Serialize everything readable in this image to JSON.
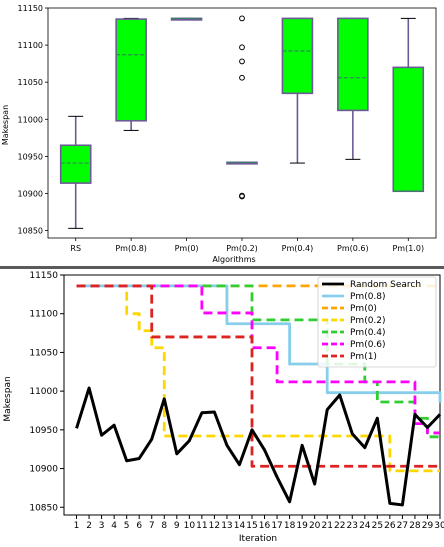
{
  "charts": {
    "boxplot": {
      "type": "box",
      "xlabel": "Algorithms",
      "ylabel": "Makespan",
      "ylim": [
        10840,
        11150
      ],
      "yticks": [
        10850,
        10900,
        10950,
        11000,
        11050,
        11100,
        11150
      ],
      "box_color": "#00ff00",
      "box_edge": "#6b5b95",
      "median_color": "#2e8b57",
      "boxes": [
        {
          "label": "RS",
          "whislo": 10853,
          "q1": 10914,
          "med": 10941,
          "q3": 10965,
          "whishi": 11004,
          "fliers": []
        },
        {
          "label": "Pm(0.8)",
          "whislo": 10985,
          "q1": 10998,
          "med": 11087,
          "q3": 11135,
          "whishi": 11136,
          "fliers": []
        },
        {
          "label": "Pm(0)",
          "whislo": 11136,
          "q1": 11136,
          "med": 11136,
          "q3": 11136,
          "whishi": 11136,
          "fliers": []
        },
        {
          "label": "Pm(0.2)",
          "whislo": 10942,
          "q1": 10942,
          "med": 10942,
          "q3": 10942,
          "whishi": 10942,
          "fliers": [
            11136,
            11097,
            11078,
            11056,
            10897,
            10896
          ]
        },
        {
          "label": "Pm(0.4)",
          "whislo": 10941,
          "q1": 11035,
          "med": 11092,
          "q3": 11136,
          "whishi": 11136,
          "fliers": []
        },
        {
          "label": "Pm(0.6)",
          "whislo": 10946,
          "q1": 11012,
          "med": 11056,
          "q3": 11136,
          "whishi": 11136,
          "fliers": []
        },
        {
          "label": "Pm(1.0)",
          "whislo": 10903,
          "q1": 10903,
          "med": 10903,
          "q3": 11070,
          "whishi": 11136,
          "fliers": []
        }
      ]
    },
    "convergence": {
      "type": "line",
      "xlabel": "Iteration",
      "ylabel": "Makespan",
      "ylim": [
        10840,
        11150
      ],
      "yticks": [
        10850,
        10900,
        10950,
        11000,
        11050,
        11100,
        11150
      ],
      "x": [
        1,
        2,
        3,
        4,
        5,
        6,
        7,
        8,
        9,
        10,
        11,
        12,
        13,
        14,
        15,
        16,
        17,
        18,
        19,
        20,
        21,
        22,
        23,
        24,
        25,
        26,
        27,
        28,
        29,
        30
      ],
      "series": [
        {
          "name": "Random Search",
          "color": "#000000",
          "dash": "solid",
          "values": [
            10952,
            11004,
            10943,
            10956,
            10910,
            10913,
            10938,
            10990,
            10919,
            10936,
            10972,
            10973,
            10930,
            10905,
            10950,
            10924,
            10889,
            10857,
            10930,
            10880,
            10976,
            10995,
            10945,
            10927,
            10965,
            10855,
            10853,
            10970,
            10953,
            10970
          ]
        },
        {
          "name": "Pm(0.8)",
          "color": "#87ceeb",
          "dash": "solid",
          "values": [
            11136,
            11136,
            11136,
            11136,
            11136,
            11136,
            11136,
            11136,
            11136,
            11136,
            11136,
            11136,
            11087,
            11087,
            11087,
            11087,
            11087,
            11035,
            11035,
            11035,
            10998,
            10998,
            10998,
            10998,
            10998,
            10998,
            10998,
            10998,
            10998,
            10985
          ]
        },
        {
          "name": "Pm(0)",
          "color": "#ffa500",
          "dash": "dashed",
          "values": [
            11136,
            11136,
            11136,
            11136,
            11136,
            11136,
            11136,
            11136,
            11136,
            11136,
            11136,
            11136,
            11136,
            11136,
            11136,
            11136,
            11136,
            11136,
            11136,
            11136,
            11136,
            11136,
            11136,
            11136,
            11136,
            11136,
            11136,
            11136,
            11136,
            11136
          ]
        },
        {
          "name": "Pm(0.2)",
          "color": "#ffd700",
          "dash": "dashed",
          "values": [
            11136,
            11136,
            11136,
            11136,
            11100,
            11078,
            11056,
            10942,
            10942,
            10942,
            10942,
            10942,
            10942,
            10942,
            10942,
            10942,
            10942,
            10942,
            10942,
            10942,
            10942,
            10942,
            10942,
            10942,
            10942,
            10897,
            10897,
            10897,
            10897,
            10897
          ]
        },
        {
          "name": "Pm(0.4)",
          "color": "#32cd32",
          "dash": "dashed",
          "values": [
            11136,
            11136,
            11136,
            11136,
            11136,
            11136,
            11136,
            11136,
            11136,
            11136,
            11136,
            11136,
            11136,
            11136,
            11092,
            11092,
            11092,
            11092,
            11092,
            11092,
            11035,
            11035,
            11035,
            11012,
            10986,
            10986,
            10986,
            10965,
            10941,
            10941
          ]
        },
        {
          "name": "Pm(0.6)",
          "color": "#ff00ff",
          "dash": "dashed",
          "values": [
            11136,
            11136,
            11136,
            11136,
            11136,
            11136,
            11136,
            11136,
            11136,
            11136,
            11101,
            11101,
            11101,
            11101,
            11056,
            11056,
            11012,
            11012,
            11012,
            11012,
            11012,
            11012,
            11012,
            11012,
            11012,
            11012,
            11012,
            10958,
            10946,
            10946
          ]
        },
        {
          "name": "Pm(1)",
          "color": "#dd2222",
          "dash": "dashed",
          "values": [
            11136,
            11136,
            11136,
            11136,
            11136,
            11136,
            11070,
            11070,
            11070,
            11070,
            11070,
            11070,
            11070,
            11070,
            10903,
            10903,
            10903,
            10903,
            10903,
            10903,
            10903,
            10903,
            10903,
            10903,
            10903,
            10903,
            10903,
            10903,
            10903,
            10903
          ]
        }
      ]
    }
  }
}
